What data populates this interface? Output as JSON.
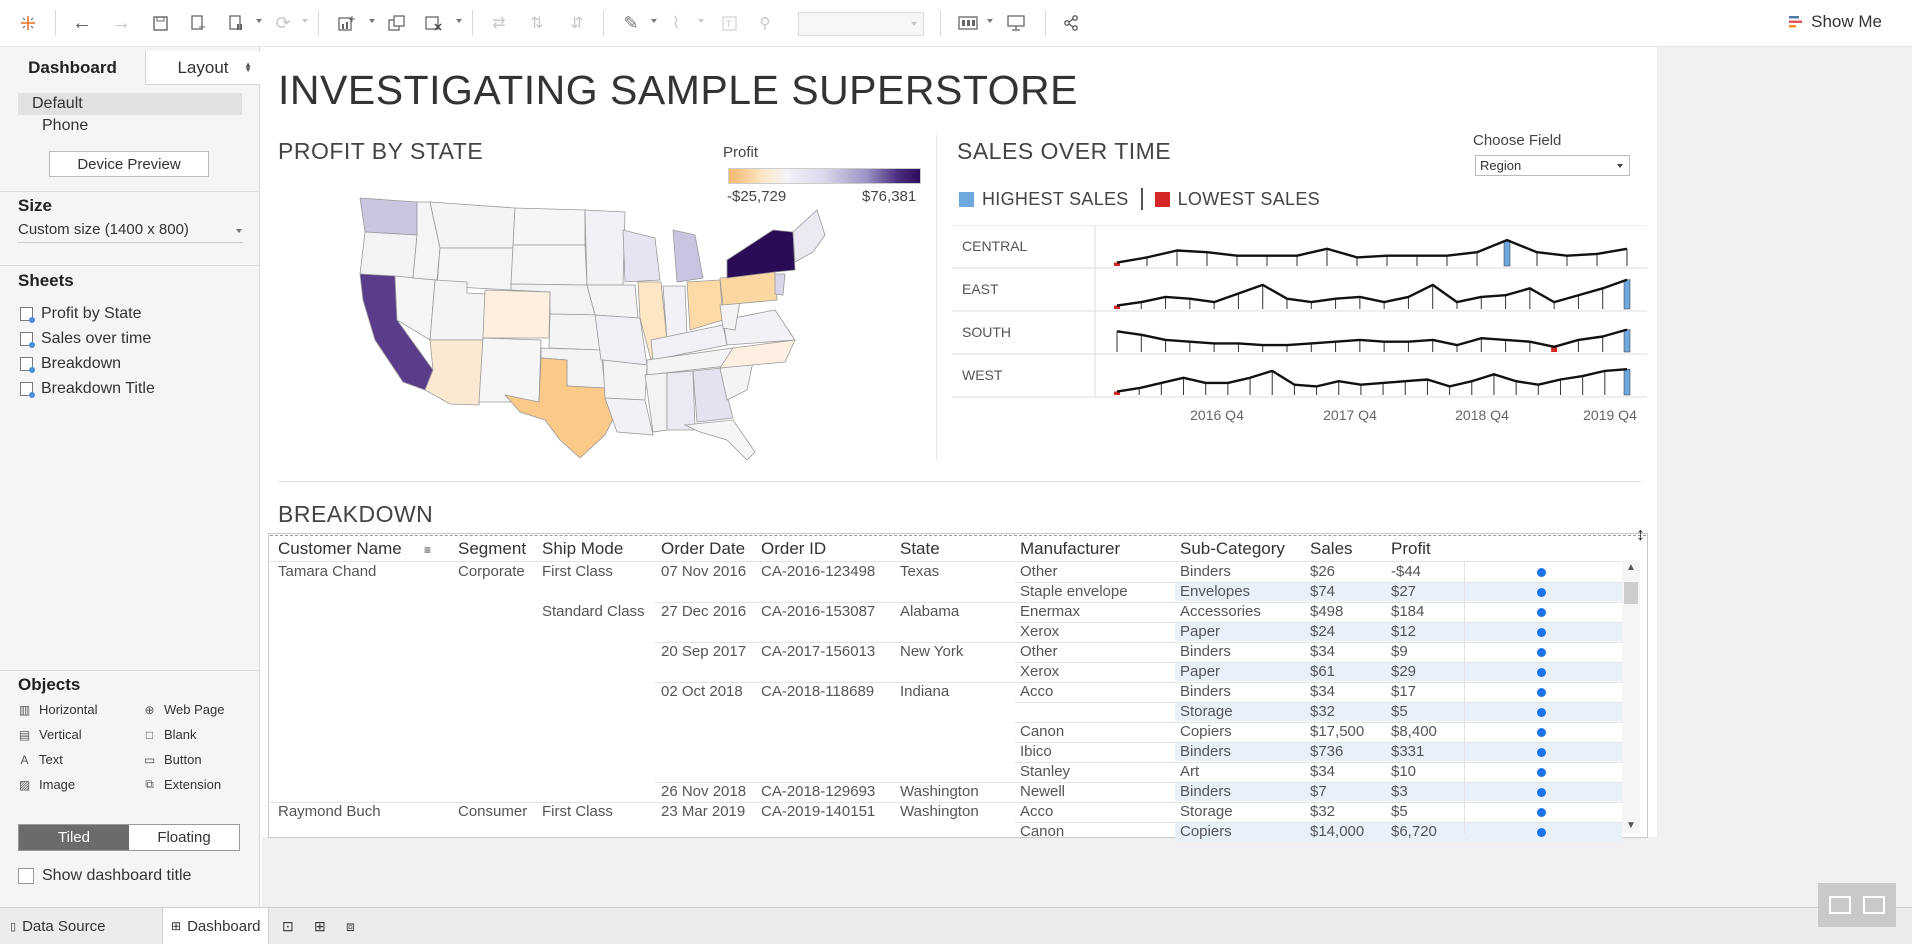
{
  "toolbar": {
    "icons": [
      "tableau-logo-icon",
      "undo-icon",
      "redo-icon",
      "save-icon",
      "new-data-source-icon",
      "pause-auto-updates-icon",
      "refresh-icon",
      "new-worksheet-icon",
      "duplicate-sheet-icon",
      "clear-sheet-icon",
      "swap-icon",
      "sort-ascending-icon",
      "sort-descending-icon",
      "highlight-icon",
      "group-icon",
      "show-labels-icon",
      "fix-axes-icon",
      "fit-dropdown",
      "show-cards-icon",
      "presentation-mode-icon",
      "share-icon"
    ],
    "show_me": "Show Me"
  },
  "left_pane": {
    "tab_dashboard": "Dashboard",
    "tab_layout": "Layout",
    "devices": [
      "Default",
      "Phone"
    ],
    "device_preview": "Device Preview",
    "size_heading": "Size",
    "size_value": "Custom size (1400 x 800)",
    "sheets_heading": "Sheets",
    "sheets": [
      "Profit by State",
      "Sales over time",
      "Breakdown",
      "Breakdown Title"
    ],
    "objects_heading": "Objects",
    "objects": [
      {
        "label": "Horizontal",
        "icon": "horizontal-icon"
      },
      {
        "label": "Web Page",
        "icon": "globe-icon"
      },
      {
        "label": "Vertical",
        "icon": "vertical-icon"
      },
      {
        "label": "Blank",
        "icon": "blank-icon"
      },
      {
        "label": "Text",
        "icon": "text-icon"
      },
      {
        "label": "Button",
        "icon": "button-icon"
      },
      {
        "label": "Image",
        "icon": "image-icon"
      },
      {
        "label": "Extension",
        "icon": "extension-icon"
      }
    ],
    "tiled": "Tiled",
    "floating": "Floating",
    "show_title": "Show dashboard title"
  },
  "bottom_tabs": {
    "data_source": "Data Source",
    "dashboard": "Dashboard"
  },
  "dashboard": {
    "title": "INVESTIGATING SAMPLE SUPERSTORE",
    "profit_title": "PROFIT BY STATE",
    "legend_title": "Profit",
    "legend_min": "-$25,729",
    "legend_max": "$76,381",
    "sales_title": "SALES OVER TIME",
    "choose_field_label": "Choose Field",
    "choose_field_value": "Region",
    "highest": "HIGHEST SALES",
    "lowest": "LOWEST SALES",
    "highest_color": "#6fa8dc",
    "lowest_color": "#d62728",
    "breakdown_title": "BREAKDOWN"
  },
  "chart_data": {
    "type": "line",
    "title": "SALES OVER TIME",
    "rows": [
      "CENTRAL",
      "EAST",
      "SOUTH",
      "WEST"
    ],
    "x_ticks": [
      "2016 Q4",
      "2017 Q4",
      "2018 Q4",
      "2019 Q4"
    ],
    "series": [
      {
        "name": "CENTRAL",
        "values": [
          2,
          5,
          9,
          8,
          6,
          6,
          6,
          10,
          5,
          6,
          6,
          6,
          8,
          15,
          8,
          6,
          7,
          10
        ],
        "highest": 13,
        "lowest": 0
      },
      {
        "name": "EAST",
        "values": [
          2,
          4,
          7,
          6,
          4,
          9,
          14,
          6,
          4,
          6,
          7,
          4,
          7,
          14,
          4,
          7,
          8,
          12,
          4,
          8,
          12,
          17
        ],
        "highest": 21,
        "lowest": 0
      },
      {
        "name": "SOUTH",
        "values": [
          12,
          10,
          7,
          6,
          5,
          5,
          4,
          4,
          5,
          6,
          7,
          6,
          6,
          7,
          4,
          8,
          7,
          6,
          3,
          7,
          9,
          13
        ],
        "highest": 21,
        "lowest": 18
      },
      {
        "name": "WEST",
        "values": [
          2,
          4,
          7,
          10,
          7,
          7,
          10,
          14,
          6,
          5,
          8,
          6,
          7,
          8,
          9,
          5,
          8,
          12,
          8,
          6,
          9,
          11,
          14,
          15
        ],
        "highest": 23,
        "lowest": 0
      }
    ]
  },
  "table": {
    "headers": [
      "Customer Name",
      "Segment",
      "Ship Mode",
      "Order Date",
      "Order ID",
      "State",
      "Manufacturer",
      "Sub-Category",
      "Sales",
      "Profit"
    ],
    "rows": [
      [
        "Tamara Chand",
        "Corporate",
        "First Class",
        "07 Nov 2016",
        "CA-2016-123498",
        "Texas",
        "Other",
        "Binders",
        "$26",
        "-$44"
      ],
      [
        "",
        "",
        "",
        "",
        "",
        "",
        "Staple envelope",
        "Envelopes",
        "$74",
        "$27"
      ],
      [
        "",
        "",
        "Standard Class",
        "27 Dec 2016",
        "CA-2016-153087",
        "Alabama",
        "Enermax",
        "Accessories",
        "$498",
        "$184"
      ],
      [
        "",
        "",
        "",
        "",
        "",
        "",
        "Xerox",
        "Paper",
        "$24",
        "$12"
      ],
      [
        "",
        "",
        "",
        "20 Sep 2017",
        "CA-2017-156013",
        "New York",
        "Other",
        "Binders",
        "$34",
        "$9"
      ],
      [
        "",
        "",
        "",
        "",
        "",
        "",
        "Xerox",
        "Paper",
        "$61",
        "$29"
      ],
      [
        "",
        "",
        "",
        "02 Oct 2018",
        "CA-2018-118689",
        "Indiana",
        "Acco",
        "Binders",
        "$34",
        "$17"
      ],
      [
        "",
        "",
        "",
        "",
        "",
        "",
        "",
        "Storage",
        "$32",
        "$5"
      ],
      [
        "",
        "",
        "",
        "",
        "",
        "",
        "Canon",
        "Copiers",
        "$17,500",
        "$8,400"
      ],
      [
        "",
        "",
        "",
        "",
        "",
        "",
        "Ibico",
        "Binders",
        "$736",
        "$331"
      ],
      [
        "",
        "",
        "",
        "",
        "",
        "",
        "Stanley",
        "Art",
        "$34",
        "$10"
      ],
      [
        "",
        "",
        "",
        "26 Nov 2018",
        "CA-2018-129693",
        "Washington",
        "Newell",
        "Binders",
        "$7",
        "$3"
      ],
      [
        "Raymond Buch",
        "Consumer",
        "First Class",
        "23 Mar 2019",
        "CA-2019-140151",
        "Washington",
        "Acco",
        "Storage",
        "$32",
        "$5"
      ],
      [
        "",
        "",
        "",
        "",
        "",
        "",
        "Canon",
        "Copiers",
        "$14,000",
        "$6,720"
      ]
    ]
  }
}
